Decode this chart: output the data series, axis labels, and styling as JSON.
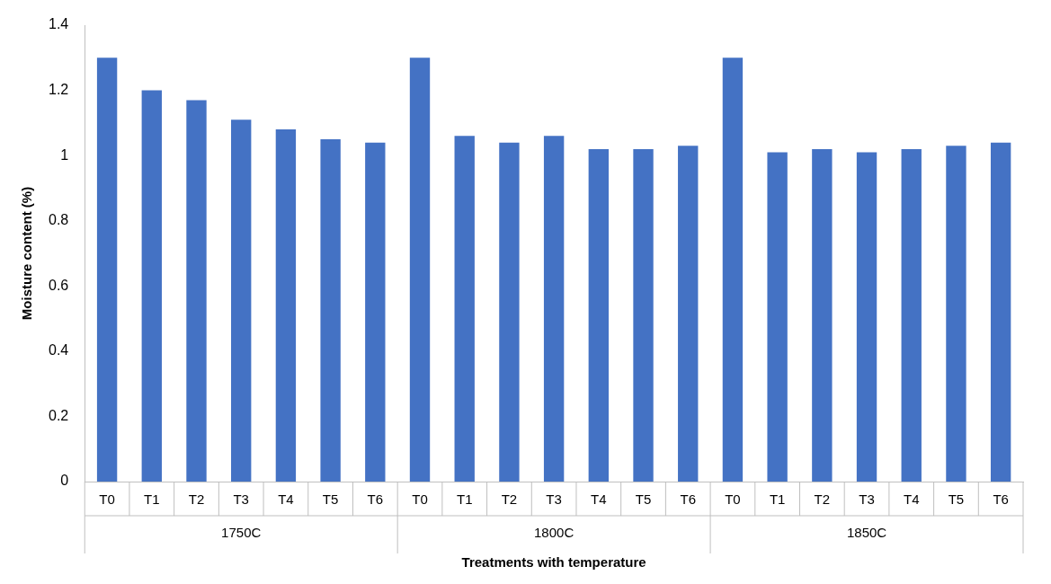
{
  "chart_data": {
    "type": "bar",
    "xlabel": "Treatments with temperature",
    "ylabel": "Moisture content (%)",
    "categories": [
      "T0",
      "T1",
      "T2",
      "T3",
      "T4",
      "T5",
      "T6",
      "T0",
      "T1",
      "T2",
      "T3",
      "T4",
      "T5",
      "T6",
      "T0",
      "T1",
      "T2",
      "T3",
      "T4",
      "T5",
      "T6"
    ],
    "values": [
      1.3,
      1.2,
      1.17,
      1.11,
      1.08,
      1.05,
      1.04,
      1.3,
      1.06,
      1.04,
      1.06,
      1.02,
      1.02,
      1.03,
      1.3,
      1.01,
      1.02,
      1.01,
      1.02,
      1.03,
      1.04
    ],
    "color": "#4472c4",
    "ylim": [
      0,
      1.4
    ],
    "yticks": [
      0,
      0.2,
      0.4,
      0.6,
      0.8,
      1,
      1.2,
      1.4
    ],
    "grid": false,
    "legend": false,
    "annotations": [
      "1750C",
      "1800C",
      "1850C"
    ]
  }
}
